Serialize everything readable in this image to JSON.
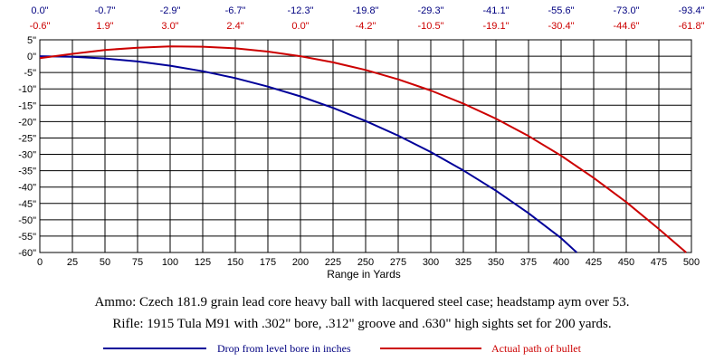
{
  "chart_data": {
    "type": "line",
    "xlabel": "Range in Yards",
    "ylabel": "",
    "xlim": [
      0,
      500
    ],
    "ylim": [
      -60,
      5
    ],
    "grid": true,
    "x_ticks": [
      "0",
      "25",
      "50",
      "75",
      "100",
      "125",
      "150",
      "175",
      "200",
      "225",
      "250",
      "275",
      "300",
      "325",
      "350",
      "375",
      "400",
      "425",
      "450",
      "475",
      "500"
    ],
    "y_ticks": [
      "5\"",
      "0\"",
      "-5\"",
      "-10\"",
      "-15\"",
      "-20\"",
      "-25\"",
      "-30\"",
      "-35\"",
      "-40\"",
      "-45\"",
      "-50\"",
      "-55\"",
      "-60\""
    ],
    "top_drop_labels": [
      "0.0\"",
      "-0.7\"",
      "-2.9\"",
      "-6.7\"",
      "-12.3\"",
      "-19.8\"",
      "-29.3\"",
      "-41.1\"",
      "-55.6\"",
      "-73.0\"",
      "-93.4\""
    ],
    "top_path_labels": [
      "-0.6\"",
      "1.9\"",
      "3.0\"",
      "2.4\"",
      "0.0\"",
      "-4.2\"",
      "-10.5\"",
      "-19.1\"",
      "-30.4\"",
      "-44.6\"",
      "-61.8\""
    ],
    "series": [
      {
        "name": "Drop from level bore in inches",
        "color": "#000099",
        "x": [
          0,
          25,
          50,
          75,
          100,
          125,
          150,
          175,
          200,
          225,
          250,
          275,
          300,
          325,
          350,
          375,
          400,
          412
        ],
        "y": [
          0,
          -0.2,
          -0.7,
          -1.6,
          -2.9,
          -4.6,
          -6.7,
          -9.3,
          -12.3,
          -15.8,
          -19.8,
          -24.3,
          -29.3,
          -34.9,
          -41.1,
          -48.0,
          -55.6,
          -60
        ]
      },
      {
        "name": "Actual path of bullet",
        "color": "#cc0000",
        "x": [
          0,
          25,
          50,
          75,
          100,
          125,
          150,
          175,
          200,
          225,
          250,
          275,
          300,
          325,
          350,
          375,
          400,
          425,
          450,
          475,
          496
        ],
        "y": [
          -0.6,
          0.7,
          1.9,
          2.6,
          3.0,
          2.9,
          2.4,
          1.4,
          0.0,
          -1.9,
          -4.2,
          -7.1,
          -10.5,
          -14.5,
          -19.1,
          -24.4,
          -30.4,
          -37.2,
          -44.6,
          -52.8,
          -60
        ]
      }
    ]
  },
  "notes": {
    "ammo": "Ammo:  Czech 181.9 grain lead core heavy ball with lacquered steel case; headstamp aym over 53.",
    "rifle": "Rifle:  1915 Tula M91 with .302\" bore, .312\" groove and .630\" high sights set for 200 yards."
  },
  "legend": {
    "drop_label": "Drop from level bore in inches",
    "path_label": "Actual path of bullet"
  }
}
